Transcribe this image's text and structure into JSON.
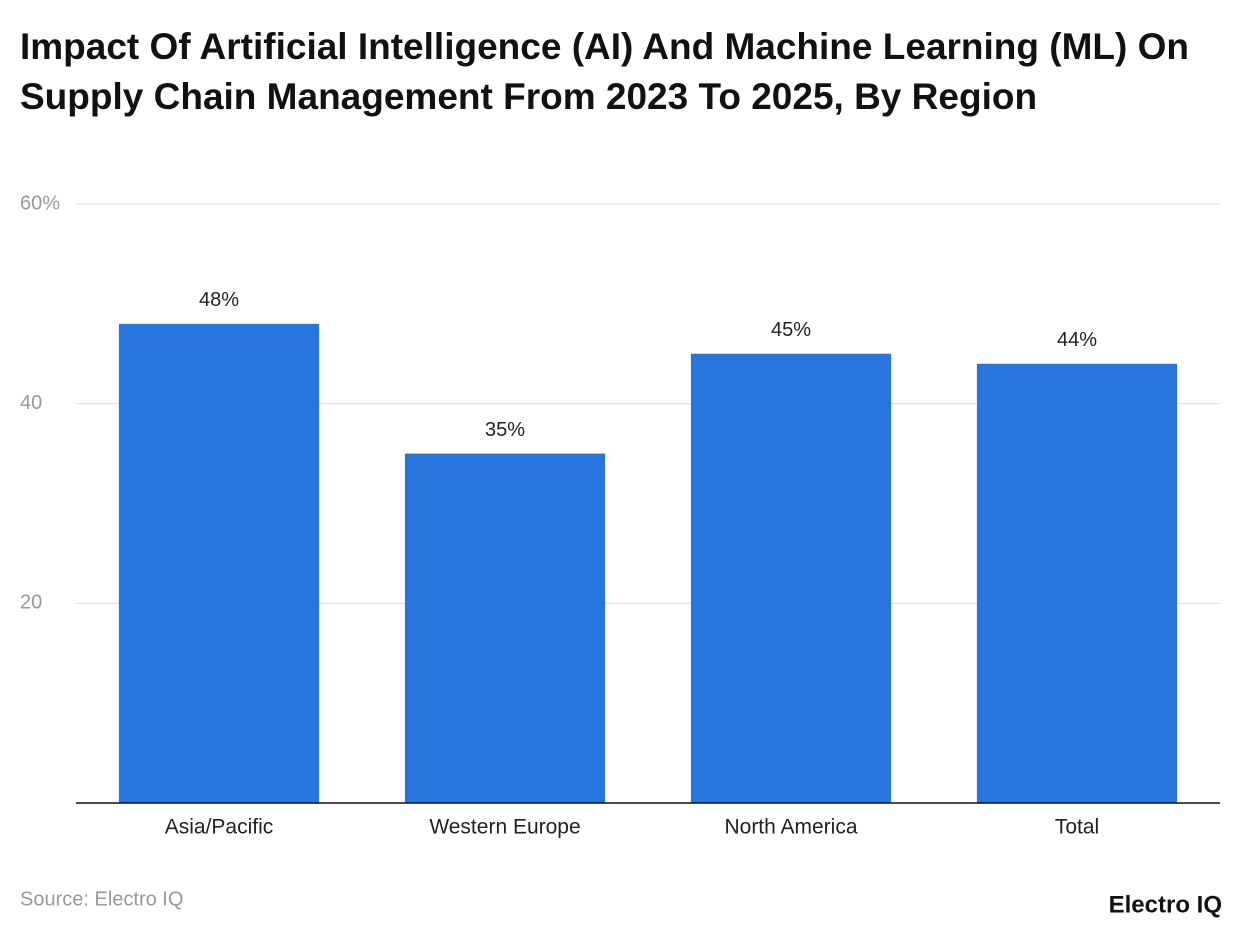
{
  "chart_data": {
    "type": "bar",
    "title": "Impact Of Artificial Intelligence (AI) And Machine Learning (ML) On Supply Chain Management From 2023 To 2025, By Region",
    "categories": [
      "Asia/Pacific",
      "Western Europe",
      "North America",
      "Total"
    ],
    "values": [
      48,
      35,
      45,
      44
    ],
    "value_labels": [
      "48%",
      "35%",
      "45%",
      "44%"
    ],
    "color": "#2876dd",
    "ylim": [
      0,
      60
    ],
    "yticks": [
      20,
      40,
      {
        "value": 60,
        "label": "60%"
      }
    ],
    "grid": true,
    "source": "Source: Electro IQ",
    "brand": "Electro IQ"
  }
}
